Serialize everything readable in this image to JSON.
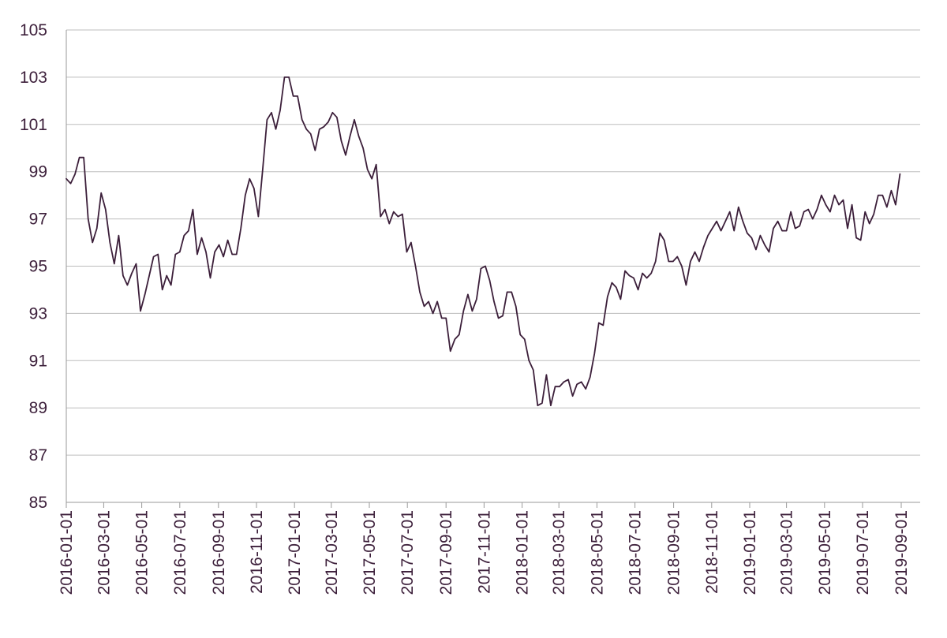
{
  "chart_data": {
    "type": "line",
    "title": "",
    "xlabel": "",
    "ylabel": "",
    "ylim": [
      85,
      105
    ],
    "yticks": [
      85,
      87,
      89,
      91,
      93,
      95,
      97,
      99,
      101,
      103,
      105
    ],
    "xticks": [
      "2016-01-01",
      "2016-03-01",
      "2016-05-01",
      "2016-07-01",
      "2016-09-01",
      "2016-11-01",
      "2017-01-01",
      "2017-03-01",
      "2017-05-01",
      "2017-07-01",
      "2017-09-01",
      "2017-11-01",
      "2018-01-01",
      "2018-03-01",
      "2018-05-01",
      "2018-07-01",
      "2018-09-01",
      "2018-11-01",
      "2019-01-01",
      "2019-03-01",
      "2019-05-01",
      "2019-07-01",
      "2019-09-01"
    ],
    "xlim": [
      "2016-01-01",
      "2019-09-01"
    ],
    "grid": true,
    "line_color": "#3c1f3a",
    "series": [
      {
        "points": [
          [
            "2016-01-01",
            98.7
          ],
          [
            "2016-01-08",
            98.5
          ],
          [
            "2016-01-15",
            98.9
          ],
          [
            "2016-01-22",
            99.6
          ],
          [
            "2016-01-29",
            99.6
          ],
          [
            "2016-02-05",
            97.0
          ],
          [
            "2016-02-12",
            96.0
          ],
          [
            "2016-02-19",
            96.6
          ],
          [
            "2016-02-26",
            98.1
          ],
          [
            "2016-03-04",
            97.4
          ],
          [
            "2016-03-11",
            96.0
          ],
          [
            "2016-03-18",
            95.1
          ],
          [
            "2016-03-25",
            96.3
          ],
          [
            "2016-04-01",
            94.6
          ],
          [
            "2016-04-08",
            94.2
          ],
          [
            "2016-04-15",
            94.7
          ],
          [
            "2016-04-22",
            95.1
          ],
          [
            "2016-04-29",
            93.1
          ],
          [
            "2016-05-06",
            93.8
          ],
          [
            "2016-05-13",
            94.6
          ],
          [
            "2016-05-20",
            95.4
          ],
          [
            "2016-05-27",
            95.5
          ],
          [
            "2016-06-03",
            94.0
          ],
          [
            "2016-06-10",
            94.6
          ],
          [
            "2016-06-17",
            94.2
          ],
          [
            "2016-06-24",
            95.5
          ],
          [
            "2016-07-01",
            95.6
          ],
          [
            "2016-07-08",
            96.3
          ],
          [
            "2016-07-15",
            96.5
          ],
          [
            "2016-07-22",
            97.4
          ],
          [
            "2016-07-29",
            95.5
          ],
          [
            "2016-08-05",
            96.2
          ],
          [
            "2016-08-12",
            95.6
          ],
          [
            "2016-08-19",
            94.5
          ],
          [
            "2016-08-26",
            95.6
          ],
          [
            "2016-09-02",
            95.9
          ],
          [
            "2016-09-09",
            95.4
          ],
          [
            "2016-09-16",
            96.1
          ],
          [
            "2016-09-23",
            95.5
          ],
          [
            "2016-09-30",
            95.5
          ],
          [
            "2016-10-07",
            96.6
          ],
          [
            "2016-10-14",
            98.0
          ],
          [
            "2016-10-21",
            98.7
          ],
          [
            "2016-10-28",
            98.3
          ],
          [
            "2016-11-04",
            97.1
          ],
          [
            "2016-11-11",
            99.1
          ],
          [
            "2016-11-18",
            101.2
          ],
          [
            "2016-11-25",
            101.5
          ],
          [
            "2016-12-02",
            100.8
          ],
          [
            "2016-12-09",
            101.6
          ],
          [
            "2016-12-16",
            103.0
          ],
          [
            "2016-12-23",
            103.0
          ],
          [
            "2016-12-30",
            102.2
          ],
          [
            "2017-01-06",
            102.2
          ],
          [
            "2017-01-13",
            101.2
          ],
          [
            "2017-01-20",
            100.8
          ],
          [
            "2017-01-27",
            100.6
          ],
          [
            "2017-02-03",
            99.9
          ],
          [
            "2017-02-10",
            100.8
          ],
          [
            "2017-02-17",
            100.9
          ],
          [
            "2017-02-24",
            101.1
          ],
          [
            "2017-03-03",
            101.5
          ],
          [
            "2017-03-10",
            101.3
          ],
          [
            "2017-03-17",
            100.3
          ],
          [
            "2017-03-24",
            99.7
          ],
          [
            "2017-03-31",
            100.5
          ],
          [
            "2017-04-07",
            101.2
          ],
          [
            "2017-04-14",
            100.5
          ],
          [
            "2017-04-21",
            100.0
          ],
          [
            "2017-04-28",
            99.1
          ],
          [
            "2017-05-05",
            98.7
          ],
          [
            "2017-05-12",
            99.3
          ],
          [
            "2017-05-19",
            97.1
          ],
          [
            "2017-05-26",
            97.4
          ],
          [
            "2017-06-02",
            96.8
          ],
          [
            "2017-06-09",
            97.3
          ],
          [
            "2017-06-16",
            97.1
          ],
          [
            "2017-06-23",
            97.2
          ],
          [
            "2017-06-30",
            95.6
          ],
          [
            "2017-07-07",
            96.0
          ],
          [
            "2017-07-14",
            95.0
          ],
          [
            "2017-07-21",
            93.9
          ],
          [
            "2017-07-28",
            93.3
          ],
          [
            "2017-08-04",
            93.5
          ],
          [
            "2017-08-11",
            93.0
          ],
          [
            "2017-08-18",
            93.5
          ],
          [
            "2017-08-25",
            92.8
          ],
          [
            "2017-09-01",
            92.8
          ],
          [
            "2017-09-08",
            91.4
          ],
          [
            "2017-09-15",
            91.9
          ],
          [
            "2017-09-22",
            92.1
          ],
          [
            "2017-09-29",
            93.1
          ],
          [
            "2017-10-06",
            93.8
          ],
          [
            "2017-10-13",
            93.1
          ],
          [
            "2017-10-20",
            93.6
          ],
          [
            "2017-10-27",
            94.9
          ],
          [
            "2017-11-03",
            95.0
          ],
          [
            "2017-11-10",
            94.4
          ],
          [
            "2017-11-17",
            93.5
          ],
          [
            "2017-11-24",
            92.8
          ],
          [
            "2017-12-01",
            92.9
          ],
          [
            "2017-12-08",
            93.9
          ],
          [
            "2017-12-15",
            93.9
          ],
          [
            "2017-12-22",
            93.3
          ],
          [
            "2017-12-29",
            92.1
          ],
          [
            "2018-01-05",
            91.9
          ],
          [
            "2018-01-12",
            91.0
          ],
          [
            "2018-01-19",
            90.6
          ],
          [
            "2018-01-26",
            89.1
          ],
          [
            "2018-02-02",
            89.2
          ],
          [
            "2018-02-09",
            90.4
          ],
          [
            "2018-02-16",
            89.1
          ],
          [
            "2018-02-23",
            89.9
          ],
          [
            "2018-03-02",
            89.9
          ],
          [
            "2018-03-09",
            90.1
          ],
          [
            "2018-03-16",
            90.2
          ],
          [
            "2018-03-23",
            89.5
          ],
          [
            "2018-03-30",
            90.0
          ],
          [
            "2018-04-06",
            90.1
          ],
          [
            "2018-04-13",
            89.8
          ],
          [
            "2018-04-20",
            90.3
          ],
          [
            "2018-04-27",
            91.3
          ],
          [
            "2018-05-04",
            92.6
          ],
          [
            "2018-05-11",
            92.5
          ],
          [
            "2018-05-18",
            93.7
          ],
          [
            "2018-05-25",
            94.3
          ],
          [
            "2018-06-01",
            94.1
          ],
          [
            "2018-06-08",
            93.6
          ],
          [
            "2018-06-15",
            94.8
          ],
          [
            "2018-06-22",
            94.6
          ],
          [
            "2018-06-29",
            94.5
          ],
          [
            "2018-07-06",
            94.0
          ],
          [
            "2018-07-13",
            94.7
          ],
          [
            "2018-07-20",
            94.5
          ],
          [
            "2018-07-27",
            94.7
          ],
          [
            "2018-08-03",
            95.2
          ],
          [
            "2018-08-10",
            96.4
          ],
          [
            "2018-08-17",
            96.1
          ],
          [
            "2018-08-24",
            95.2
          ],
          [
            "2018-08-31",
            95.2
          ],
          [
            "2018-09-07",
            95.4
          ],
          [
            "2018-09-14",
            95.0
          ],
          [
            "2018-09-21",
            94.2
          ],
          [
            "2018-09-28",
            95.2
          ],
          [
            "2018-10-05",
            95.6
          ],
          [
            "2018-10-12",
            95.2
          ],
          [
            "2018-10-19",
            95.8
          ],
          [
            "2018-10-26",
            96.3
          ],
          [
            "2018-11-02",
            96.6
          ],
          [
            "2018-11-09",
            96.9
          ],
          [
            "2018-11-16",
            96.5
          ],
          [
            "2018-11-23",
            96.9
          ],
          [
            "2018-11-30",
            97.3
          ],
          [
            "2018-12-07",
            96.5
          ],
          [
            "2018-12-14",
            97.5
          ],
          [
            "2018-12-21",
            96.9
          ],
          [
            "2018-12-28",
            96.4
          ],
          [
            "2019-01-04",
            96.2
          ],
          [
            "2019-01-11",
            95.7
          ],
          [
            "2019-01-18",
            96.3
          ],
          [
            "2019-01-25",
            95.9
          ],
          [
            "2019-02-01",
            95.6
          ],
          [
            "2019-02-08",
            96.6
          ],
          [
            "2019-02-15",
            96.9
          ],
          [
            "2019-02-22",
            96.5
          ],
          [
            "2019-03-01",
            96.5
          ],
          [
            "2019-03-08",
            97.3
          ],
          [
            "2019-03-15",
            96.6
          ],
          [
            "2019-03-22",
            96.7
          ],
          [
            "2019-03-29",
            97.3
          ],
          [
            "2019-04-05",
            97.4
          ],
          [
            "2019-04-12",
            97.0
          ],
          [
            "2019-04-19",
            97.4
          ],
          [
            "2019-04-26",
            98.0
          ],
          [
            "2019-05-03",
            97.6
          ],
          [
            "2019-05-10",
            97.3
          ],
          [
            "2019-05-17",
            98.0
          ],
          [
            "2019-05-24",
            97.6
          ],
          [
            "2019-05-31",
            97.8
          ],
          [
            "2019-06-07",
            96.6
          ],
          [
            "2019-06-14",
            97.6
          ],
          [
            "2019-06-21",
            96.2
          ],
          [
            "2019-06-28",
            96.1
          ],
          [
            "2019-07-05",
            97.3
          ],
          [
            "2019-07-12",
            96.8
          ],
          [
            "2019-07-19",
            97.2
          ],
          [
            "2019-07-26",
            98.0
          ],
          [
            "2019-08-02",
            98.0
          ],
          [
            "2019-08-09",
            97.5
          ],
          [
            "2019-08-16",
            98.2
          ],
          [
            "2019-08-23",
            97.6
          ],
          [
            "2019-08-30",
            98.9
          ]
        ]
      }
    ]
  }
}
